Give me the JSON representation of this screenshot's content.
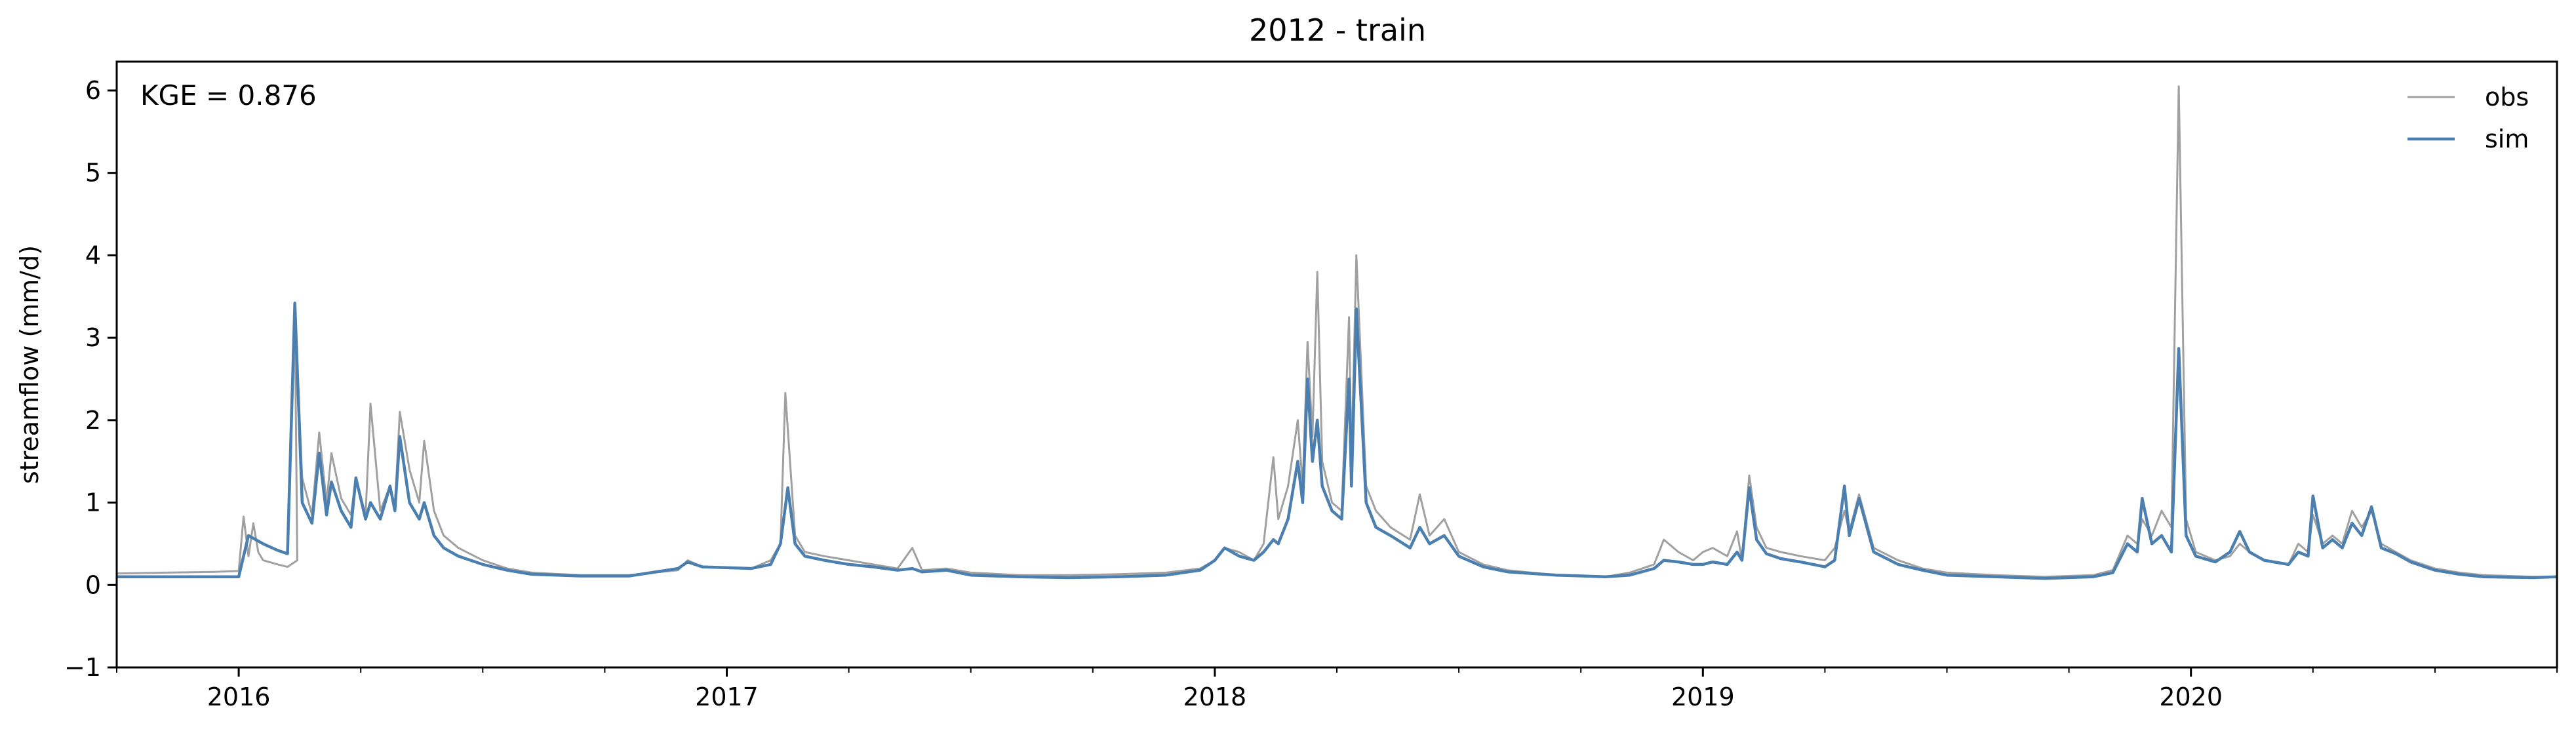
{
  "chart_data": {
    "type": "line",
    "title": "2012 - train",
    "xlabel": "",
    "ylabel": "streamflow (mm/d)",
    "annotation": "KGE = 0.876",
    "xlim": [
      2015.75,
      2020.75
    ],
    "ylim": [
      -1,
      6.35
    ],
    "yticks": [
      -1,
      0,
      1,
      2,
      3,
      4,
      5,
      6
    ],
    "xticks": [
      {
        "value": 2016.0,
        "label": "2016"
      },
      {
        "value": 2017.0,
        "label": "2017"
      },
      {
        "value": 2018.0,
        "label": "2018"
      },
      {
        "value": 2019.0,
        "label": "2019"
      },
      {
        "value": 2020.0,
        "label": "2020"
      }
    ],
    "legend_position": "top-right",
    "grid": false,
    "series": [
      {
        "name": "obs",
        "color": "#a0a0a0",
        "points": [
          [
            2015.75,
            0.14
          ],
          [
            2015.85,
            0.15
          ],
          [
            2015.95,
            0.16
          ],
          [
            2016.0,
            0.17
          ],
          [
            2016.01,
            0.83
          ],
          [
            2016.02,
            0.35
          ],
          [
            2016.03,
            0.75
          ],
          [
            2016.04,
            0.4
          ],
          [
            2016.05,
            0.3
          ],
          [
            2016.08,
            0.25
          ],
          [
            2016.1,
            0.22
          ],
          [
            2016.12,
            0.3
          ],
          [
            2016.115,
            3.35
          ],
          [
            2016.13,
            1.3
          ],
          [
            2016.15,
            0.85
          ],
          [
            2016.165,
            1.85
          ],
          [
            2016.18,
            1.0
          ],
          [
            2016.19,
            1.6
          ],
          [
            2016.21,
            1.05
          ],
          [
            2016.23,
            0.85
          ],
          [
            2016.24,
            1.3
          ],
          [
            2016.26,
            0.85
          ],
          [
            2016.27,
            2.2
          ],
          [
            2016.29,
            0.9
          ],
          [
            2016.31,
            1.2
          ],
          [
            2016.32,
            0.95
          ],
          [
            2016.33,
            2.1
          ],
          [
            2016.35,
            1.4
          ],
          [
            2016.37,
            1.0
          ],
          [
            2016.38,
            1.75
          ],
          [
            2016.4,
            0.9
          ],
          [
            2016.42,
            0.6
          ],
          [
            2016.45,
            0.45
          ],
          [
            2016.5,
            0.3
          ],
          [
            2016.55,
            0.2
          ],
          [
            2016.6,
            0.15
          ],
          [
            2016.7,
            0.12
          ],
          [
            2016.8,
            0.12
          ],
          [
            2016.9,
            0.18
          ],
          [
            2016.92,
            0.3
          ],
          [
            2016.95,
            0.22
          ],
          [
            2017.05,
            0.2
          ],
          [
            2017.09,
            0.3
          ],
          [
            2017.11,
            0.5
          ],
          [
            2017.12,
            2.33
          ],
          [
            2017.14,
            0.6
          ],
          [
            2017.16,
            0.4
          ],
          [
            2017.2,
            0.35
          ],
          [
            2017.25,
            0.3
          ],
          [
            2017.3,
            0.25
          ],
          [
            2017.35,
            0.2
          ],
          [
            2017.38,
            0.45
          ],
          [
            2017.4,
            0.18
          ],
          [
            2017.45,
            0.2
          ],
          [
            2017.5,
            0.15
          ],
          [
            2017.6,
            0.12
          ],
          [
            2017.7,
            0.12
          ],
          [
            2017.8,
            0.13
          ],
          [
            2017.9,
            0.15
          ],
          [
            2017.97,
            0.2
          ],
          [
            2018.0,
            0.3
          ],
          [
            2018.02,
            0.45
          ],
          [
            2018.05,
            0.4
          ],
          [
            2018.08,
            0.3
          ],
          [
            2018.1,
            0.5
          ],
          [
            2018.12,
            1.55
          ],
          [
            2018.13,
            0.8
          ],
          [
            2018.15,
            1.2
          ],
          [
            2018.17,
            2.0
          ],
          [
            2018.18,
            1.2
          ],
          [
            2018.19,
            2.95
          ],
          [
            2018.2,
            1.8
          ],
          [
            2018.21,
            3.8
          ],
          [
            2018.22,
            1.5
          ],
          [
            2018.24,
            1.0
          ],
          [
            2018.26,
            0.9
          ],
          [
            2018.275,
            3.25
          ],
          [
            2018.28,
            1.5
          ],
          [
            2018.29,
            4.0
          ],
          [
            2018.31,
            1.2
          ],
          [
            2018.33,
            0.9
          ],
          [
            2018.36,
            0.7
          ],
          [
            2018.4,
            0.55
          ],
          [
            2018.42,
            1.1
          ],
          [
            2018.44,
            0.6
          ],
          [
            2018.47,
            0.8
          ],
          [
            2018.5,
            0.4
          ],
          [
            2018.55,
            0.25
          ],
          [
            2018.6,
            0.18
          ],
          [
            2018.7,
            0.12
          ],
          [
            2018.8,
            0.1
          ],
          [
            2018.85,
            0.15
          ],
          [
            2018.9,
            0.25
          ],
          [
            2018.92,
            0.55
          ],
          [
            2018.95,
            0.4
          ],
          [
            2018.98,
            0.3
          ],
          [
            2019.0,
            0.4
          ],
          [
            2019.02,
            0.45
          ],
          [
            2019.05,
            0.35
          ],
          [
            2019.07,
            0.65
          ],
          [
            2019.08,
            0.3
          ],
          [
            2019.095,
            1.33
          ],
          [
            2019.11,
            0.7
          ],
          [
            2019.13,
            0.45
          ],
          [
            2019.16,
            0.4
          ],
          [
            2019.2,
            0.35
          ],
          [
            2019.25,
            0.3
          ],
          [
            2019.27,
            0.45
          ],
          [
            2019.29,
            0.9
          ],
          [
            2019.3,
            0.65
          ],
          [
            2019.32,
            1.1
          ],
          [
            2019.35,
            0.45
          ],
          [
            2019.4,
            0.3
          ],
          [
            2019.45,
            0.2
          ],
          [
            2019.5,
            0.15
          ],
          [
            2019.6,
            0.12
          ],
          [
            2019.7,
            0.1
          ],
          [
            2019.8,
            0.12
          ],
          [
            2019.84,
            0.18
          ],
          [
            2019.87,
            0.6
          ],
          [
            2019.89,
            0.5
          ],
          [
            2019.9,
            0.8
          ],
          [
            2019.92,
            0.6
          ],
          [
            2019.94,
            0.9
          ],
          [
            2019.96,
            0.7
          ],
          [
            2019.975,
            6.05
          ],
          [
            2019.99,
            0.8
          ],
          [
            2020.01,
            0.4
          ],
          [
            2020.05,
            0.3
          ],
          [
            2020.08,
            0.35
          ],
          [
            2020.1,
            0.5
          ],
          [
            2020.12,
            0.4
          ],
          [
            2020.15,
            0.3
          ],
          [
            2020.2,
            0.25
          ],
          [
            2020.22,
            0.5
          ],
          [
            2020.24,
            0.4
          ],
          [
            2020.25,
            0.85
          ],
          [
            2020.27,
            0.5
          ],
          [
            2020.29,
            0.6
          ],
          [
            2020.31,
            0.5
          ],
          [
            2020.33,
            0.9
          ],
          [
            2020.35,
            0.7
          ],
          [
            2020.37,
            0.9
          ],
          [
            2020.39,
            0.5
          ],
          [
            2020.42,
            0.4
          ],
          [
            2020.45,
            0.3
          ],
          [
            2020.5,
            0.2
          ],
          [
            2020.55,
            0.15
          ],
          [
            2020.6,
            0.12
          ],
          [
            2020.7,
            0.1
          ],
          [
            2020.75,
            0.1
          ]
        ]
      },
      {
        "name": "sim",
        "color": "#4a7fb0",
        "points": [
          [
            2015.75,
            0.1
          ],
          [
            2015.85,
            0.1
          ],
          [
            2015.95,
            0.1
          ],
          [
            2016.0,
            0.1
          ],
          [
            2016.01,
            0.35
          ],
          [
            2016.02,
            0.6
          ],
          [
            2016.05,
            0.5
          ],
          [
            2016.08,
            0.42
          ],
          [
            2016.1,
            0.38
          ],
          [
            2016.115,
            3.42
          ],
          [
            2016.13,
            1.0
          ],
          [
            2016.15,
            0.75
          ],
          [
            2016.165,
            1.6
          ],
          [
            2016.18,
            0.85
          ],
          [
            2016.19,
            1.25
          ],
          [
            2016.21,
            0.9
          ],
          [
            2016.23,
            0.7
          ],
          [
            2016.24,
            1.3
          ],
          [
            2016.26,
            0.8
          ],
          [
            2016.27,
            1.0
          ],
          [
            2016.29,
            0.8
          ],
          [
            2016.31,
            1.2
          ],
          [
            2016.32,
            0.9
          ],
          [
            2016.33,
            1.8
          ],
          [
            2016.35,
            1.0
          ],
          [
            2016.37,
            0.8
          ],
          [
            2016.38,
            1.0
          ],
          [
            2016.4,
            0.6
          ],
          [
            2016.42,
            0.45
          ],
          [
            2016.45,
            0.35
          ],
          [
            2016.5,
            0.25
          ],
          [
            2016.55,
            0.18
          ],
          [
            2016.6,
            0.13
          ],
          [
            2016.7,
            0.11
          ],
          [
            2016.8,
            0.11
          ],
          [
            2016.9,
            0.2
          ],
          [
            2016.92,
            0.28
          ],
          [
            2016.95,
            0.22
          ],
          [
            2017.05,
            0.2
          ],
          [
            2017.09,
            0.25
          ],
          [
            2017.11,
            0.5
          ],
          [
            2017.125,
            1.18
          ],
          [
            2017.14,
            0.5
          ],
          [
            2017.16,
            0.35
          ],
          [
            2017.2,
            0.3
          ],
          [
            2017.25,
            0.25
          ],
          [
            2017.3,
            0.22
          ],
          [
            2017.35,
            0.18
          ],
          [
            2017.38,
            0.2
          ],
          [
            2017.4,
            0.16
          ],
          [
            2017.45,
            0.18
          ],
          [
            2017.5,
            0.12
          ],
          [
            2017.6,
            0.1
          ],
          [
            2017.7,
            0.09
          ],
          [
            2017.8,
            0.1
          ],
          [
            2017.9,
            0.12
          ],
          [
            2017.97,
            0.18
          ],
          [
            2018.0,
            0.3
          ],
          [
            2018.02,
            0.45
          ],
          [
            2018.05,
            0.35
          ],
          [
            2018.08,
            0.3
          ],
          [
            2018.1,
            0.4
          ],
          [
            2018.12,
            0.55
          ],
          [
            2018.13,
            0.5
          ],
          [
            2018.15,
            0.8
          ],
          [
            2018.17,
            1.5
          ],
          [
            2018.18,
            1.0
          ],
          [
            2018.19,
            2.5
          ],
          [
            2018.2,
            1.5
          ],
          [
            2018.21,
            2.0
          ],
          [
            2018.22,
            1.2
          ],
          [
            2018.24,
            0.9
          ],
          [
            2018.26,
            0.8
          ],
          [
            2018.275,
            2.5
          ],
          [
            2018.28,
            1.2
          ],
          [
            2018.29,
            3.35
          ],
          [
            2018.31,
            1.0
          ],
          [
            2018.33,
            0.7
          ],
          [
            2018.36,
            0.6
          ],
          [
            2018.4,
            0.45
          ],
          [
            2018.42,
            0.7
          ],
          [
            2018.44,
            0.5
          ],
          [
            2018.47,
            0.6
          ],
          [
            2018.5,
            0.35
          ],
          [
            2018.55,
            0.22
          ],
          [
            2018.6,
            0.16
          ],
          [
            2018.7,
            0.12
          ],
          [
            2018.8,
            0.1
          ],
          [
            2018.85,
            0.12
          ],
          [
            2018.9,
            0.2
          ],
          [
            2018.92,
            0.3
          ],
          [
            2018.95,
            0.28
          ],
          [
            2018.98,
            0.25
          ],
          [
            2019.0,
            0.25
          ],
          [
            2019.02,
            0.28
          ],
          [
            2019.05,
            0.25
          ],
          [
            2019.07,
            0.4
          ],
          [
            2019.08,
            0.3
          ],
          [
            2019.095,
            1.18
          ],
          [
            2019.11,
            0.55
          ],
          [
            2019.13,
            0.38
          ],
          [
            2019.16,
            0.32
          ],
          [
            2019.2,
            0.28
          ],
          [
            2019.25,
            0.22
          ],
          [
            2019.27,
            0.3
          ],
          [
            2019.29,
            1.2
          ],
          [
            2019.3,
            0.6
          ],
          [
            2019.32,
            1.05
          ],
          [
            2019.35,
            0.4
          ],
          [
            2019.4,
            0.25
          ],
          [
            2019.45,
            0.18
          ],
          [
            2019.5,
            0.12
          ],
          [
            2019.6,
            0.1
          ],
          [
            2019.7,
            0.08
          ],
          [
            2019.8,
            0.1
          ],
          [
            2019.84,
            0.15
          ],
          [
            2019.87,
            0.5
          ],
          [
            2019.89,
            0.4
          ],
          [
            2019.9,
            1.05
          ],
          [
            2019.92,
            0.5
          ],
          [
            2019.94,
            0.6
          ],
          [
            2019.96,
            0.4
          ],
          [
            2019.975,
            2.87
          ],
          [
            2019.99,
            0.6
          ],
          [
            2020.01,
            0.35
          ],
          [
            2020.05,
            0.28
          ],
          [
            2020.08,
            0.4
          ],
          [
            2020.1,
            0.65
          ],
          [
            2020.12,
            0.4
          ],
          [
            2020.15,
            0.3
          ],
          [
            2020.2,
            0.25
          ],
          [
            2020.22,
            0.4
          ],
          [
            2020.24,
            0.35
          ],
          [
            2020.25,
            1.08
          ],
          [
            2020.27,
            0.45
          ],
          [
            2020.29,
            0.55
          ],
          [
            2020.31,
            0.45
          ],
          [
            2020.33,
            0.75
          ],
          [
            2020.35,
            0.6
          ],
          [
            2020.37,
            0.95
          ],
          [
            2020.39,
            0.45
          ],
          [
            2020.42,
            0.38
          ],
          [
            2020.45,
            0.28
          ],
          [
            2020.5,
            0.18
          ],
          [
            2020.55,
            0.13
          ],
          [
            2020.6,
            0.1
          ],
          [
            2020.7,
            0.09
          ],
          [
            2020.75,
            0.1
          ]
        ]
      }
    ]
  }
}
